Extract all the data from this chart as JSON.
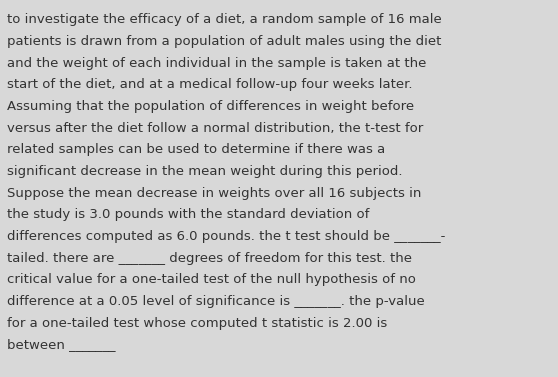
{
  "background_color": "#d8d8d8",
  "text_color": "#333333",
  "font_size": 9.5,
  "font_family": "DejaVu Sans",
  "lines": [
    "to investigate the efficacy of a diet, a random sample of 16 male",
    "patients is drawn from a population of adult males using the diet",
    "and the weight of each individual in the sample is taken at the",
    "start of the diet, and at a medical follow-up four weeks later.",
    "Assuming that the population of differences in weight before",
    "versus after the diet follow a normal distribution, the t-test for",
    "related samples can be used to determine if there was a",
    "significant decrease in the mean weight during this period.",
    "Suppose the mean decrease in weights over all 16 subjects in",
    "the study is 3.0 pounds with the standard deviation of",
    "differences computed as 6.0 pounds. the t test should be _______-",
    "tailed. there are _______ degrees of freedom for this test. the",
    "critical value for a one-tailed test of the null hypothesis of no",
    "difference at a 0.05 level of significance is _______. the p-value",
    "for a one-tailed test whose computed t statistic is 2.00 is",
    "between _______"
  ]
}
